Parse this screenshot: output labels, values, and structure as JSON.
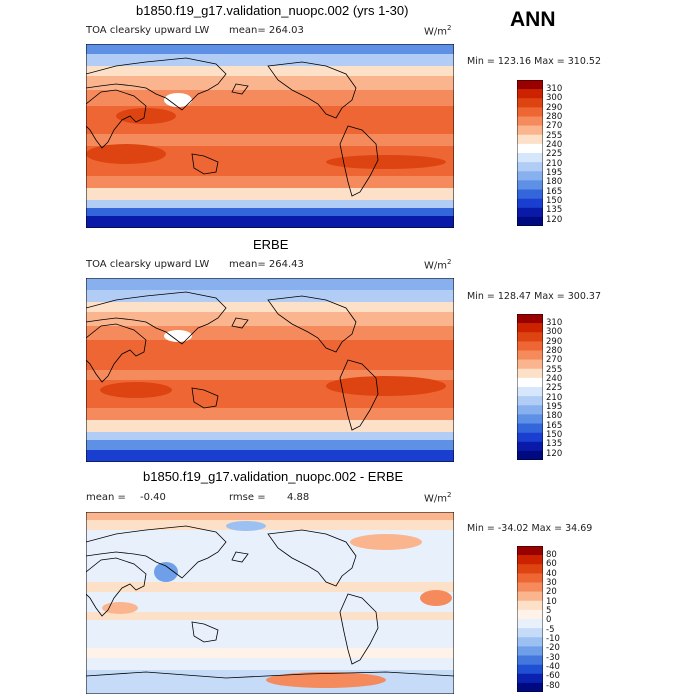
{
  "season": "ANN",
  "units": "W/m",
  "units_sup": "2",
  "panels": {
    "top": {
      "title": "b1850.f19_g17.validation_nuopc.002 (yrs 1-30)",
      "subtitle": "TOA clearsky upward LW",
      "mean_text": "mean= 264.03",
      "minmax": "Min = 123.16 Max = 310.52",
      "levels": [
        "310",
        "300",
        "290",
        "280",
        "270",
        "255",
        "240",
        "225",
        "210",
        "195",
        "180",
        "165",
        "150",
        "135",
        "120"
      ]
    },
    "middle": {
      "title": "ERBE",
      "subtitle": "TOA clearsky upward LW",
      "mean_text": "mean= 264.43",
      "minmax": "Min = 128.47 Max = 300.37",
      "levels": [
        "310",
        "300",
        "290",
        "280",
        "270",
        "255",
        "240",
        "225",
        "210",
        "195",
        "180",
        "165",
        "150",
        "135",
        "120"
      ]
    },
    "bottom": {
      "title": "b1850.f19_g17.validation_nuopc.002 - ERBE",
      "mean_label": "mean =",
      "mean_value": "-0.40",
      "rmse_label": "rmse =",
      "rmse_value": "4.88",
      "minmax": "Min = -34.02 Max =  34.69",
      "levels": [
        "80",
        "60",
        "40",
        "30",
        "20",
        "10",
        "5",
        "0",
        "-5",
        "-10",
        "-20",
        "-30",
        "-40",
        "-60",
        "-80"
      ]
    }
  },
  "colors": {
    "abs_scale": [
      "#990000",
      "#cc2200",
      "#dd4411",
      "#ee6633",
      "#f58b5c",
      "#fbb58e",
      "#fde0c8",
      "#ffffff",
      "#d6e6fb",
      "#b1cdf6",
      "#88b0ef",
      "#5e90e6",
      "#3466db",
      "#1a3fd0",
      "#0a1aa8",
      "#000a80"
    ],
    "diff_scale": [
      "#990000",
      "#cc2200",
      "#dd4411",
      "#ee6633",
      "#f58b5c",
      "#fbb58e",
      "#fde0c8",
      "#fff2e8",
      "#e8f0fc",
      "#c6dbf8",
      "#9cc0f2",
      "#6f9fe9",
      "#4377dd",
      "#1f4fd2",
      "#0b22b0",
      "#000a80"
    ]
  }
}
